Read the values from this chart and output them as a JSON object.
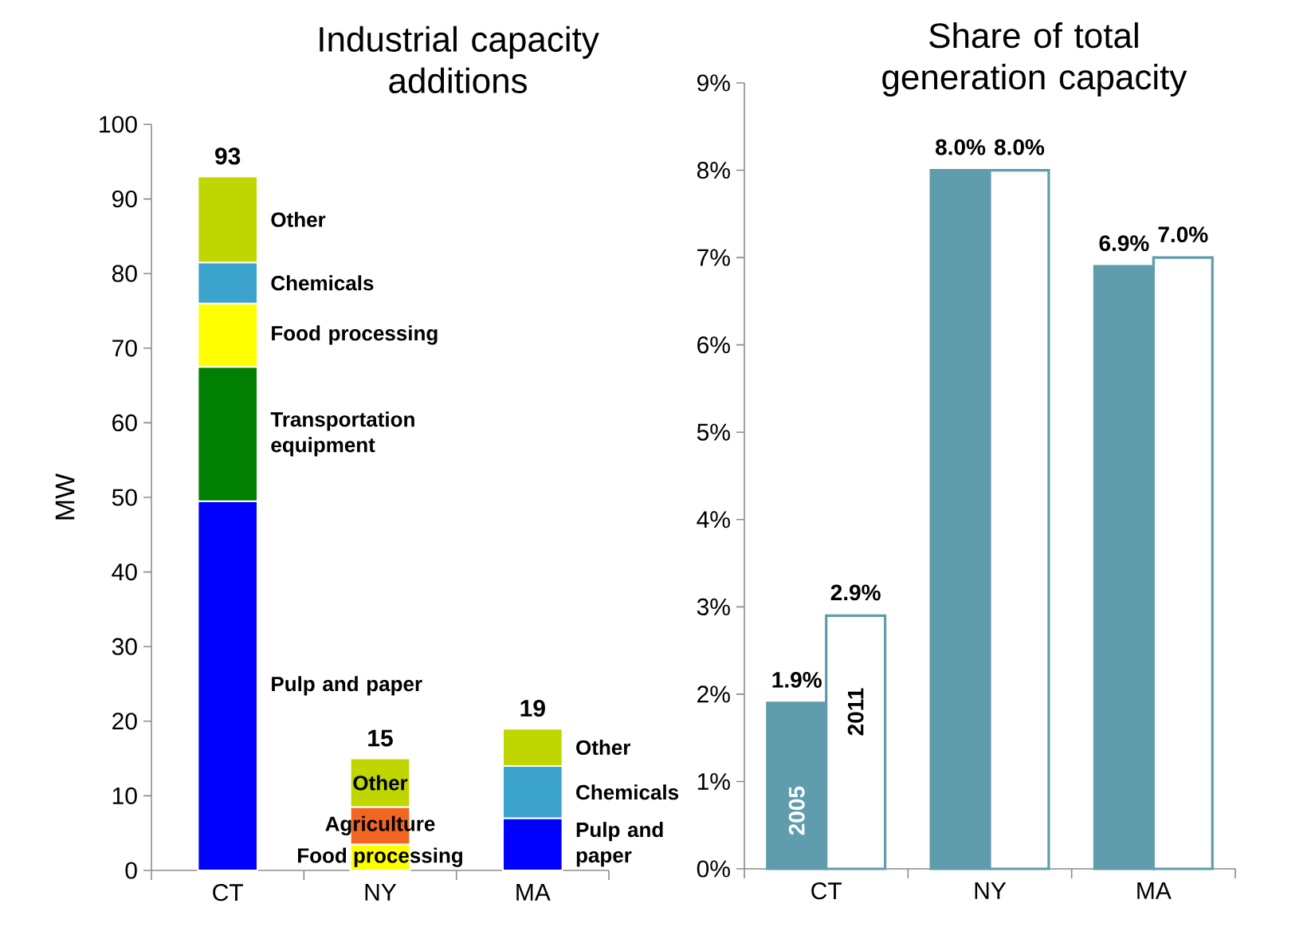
{
  "chart_data": [
    {
      "type": "bar",
      "title": "Industrial capacity additions",
      "ylabel": "MW",
      "categories": [
        "CT",
        "NY",
        "MA"
      ],
      "stacked": true,
      "series": [
        {
          "name": "Pulp and paper",
          "color": "#0000ff",
          "values": [
            49.5,
            null,
            7
          ]
        },
        {
          "name": "Transportation equipment",
          "color": "#007f00",
          "values": [
            18,
            null,
            null
          ]
        },
        {
          "name": "Food processing",
          "color": "#ffff00",
          "values": [
            8.5,
            3.5,
            null
          ]
        },
        {
          "name": "Agriculture",
          "color": "#f26522",
          "values": [
            null,
            5,
            null
          ]
        },
        {
          "name": "Chemicals",
          "color": "#3ba3cc",
          "values": [
            5.5,
            null,
            7
          ]
        },
        {
          "name": "Other",
          "color": "#bfd600",
          "values": [
            11.5,
            6.5,
            5
          ]
        }
      ],
      "totals": [
        "93",
        "15",
        "19"
      ],
      "ylim": [
        0,
        100
      ],
      "yticks": [
        0,
        10,
        20,
        30,
        40,
        50,
        60,
        70,
        80,
        90,
        100
      ]
    },
    {
      "type": "bar",
      "title": "Share of total generation capacity",
      "categories": [
        "CT",
        "NY",
        "MA"
      ],
      "series": [
        {
          "name": "2005",
          "color": "#5f9dad",
          "values": [
            1.9,
            8.0,
            6.9
          ],
          "value_labels": [
            "1.9%",
            "8.0%",
            "6.9%"
          ]
        },
        {
          "name": "2011",
          "color": "#ffffff",
          "values": [
            2.9,
            8.0,
            7.0
          ],
          "value_labels": [
            "2.9%",
            "8.0%",
            "7.0%"
          ]
        }
      ],
      "ylim": [
        0,
        9
      ],
      "yticks": [
        {
          "value": 0,
          "label": "0%"
        },
        {
          "value": 1,
          "label": "1%"
        },
        {
          "value": 2,
          "label": "2%"
        },
        {
          "value": 3,
          "label": "3%"
        },
        {
          "value": 4,
          "label": "4%"
        },
        {
          "value": 5,
          "label": "5%"
        },
        {
          "value": 6,
          "label": "6%"
        },
        {
          "value": 7,
          "label": "7%"
        },
        {
          "value": 8,
          "label": "8%"
        },
        {
          "value": 9,
          "label": "9%"
        }
      ]
    }
  ]
}
